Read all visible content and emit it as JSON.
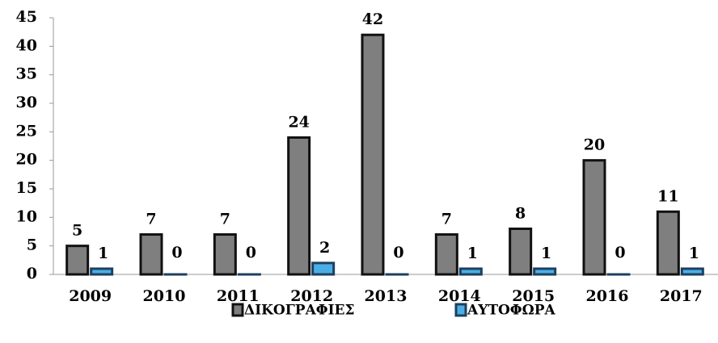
{
  "chart_data": {
    "type": "bar",
    "categories": [
      "2009",
      "2010",
      "2011",
      "2012",
      "2013",
      "2014",
      "2015",
      "2016",
      "2017"
    ],
    "series": [
      {
        "name": "ΔΙΚΟΓΡΑΦΙΕΣ",
        "color": "#7f7f7f",
        "values": [
          5,
          7,
          7,
          24,
          42,
          7,
          8,
          20,
          11
        ]
      },
      {
        "name": "ΑΥΤΟΦΩΡΑ",
        "color": "#4aaee6",
        "values": [
          1,
          0,
          0,
          2,
          0,
          1,
          1,
          0,
          1
        ]
      }
    ],
    "ylim": [
      0,
      45
    ],
    "yticks": [
      0,
      5,
      10,
      15,
      20,
      25,
      30,
      35,
      40,
      45
    ],
    "grid": false,
    "legend": "bottom"
  }
}
